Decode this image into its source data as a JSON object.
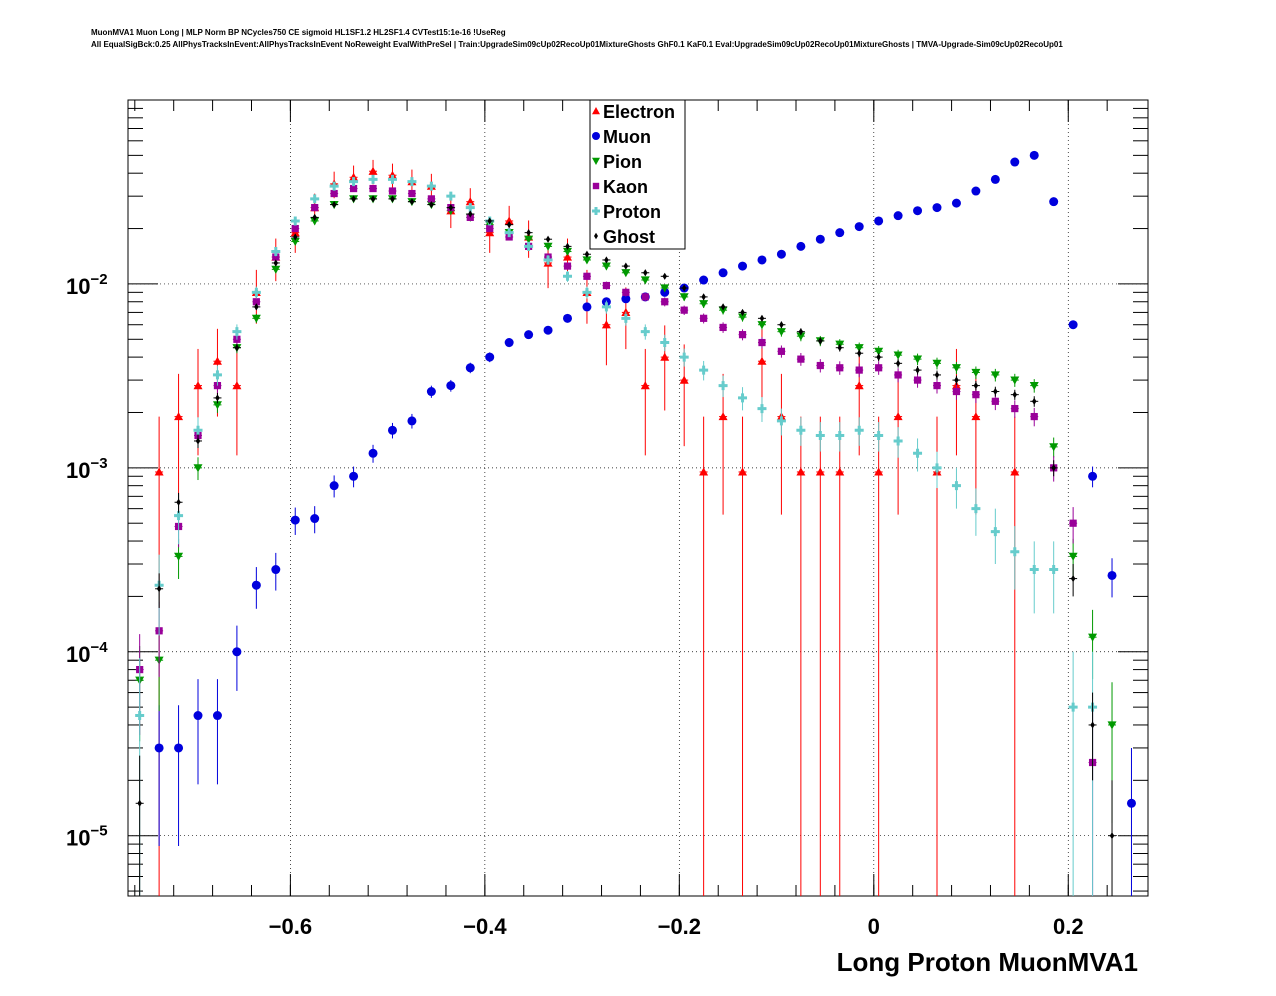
{
  "title_lines": [
    "MuonMVA1 Muon Long | MLP Norm BP NCycles750 CE sigmoid HL1SF1.2 HL2SF1.4 CVTest15:1e-16 !UseReg",
    "All EqualSigBck:0.25 AllPhysTracksInEvent:AllPhysTracksInEvent NoReweight EvalWithPreSel | Train:UpgradeSim09cUp02RecoUp01MixtureGhosts GhF0.1 KaF0.1 Eval:UpgradeSim09cUp02RecoUp01MixtureGhosts | TMVA-Upgrade-Sim09cUp02RecoUp01"
  ],
  "chart_data": {
    "type": "scatter",
    "xlabel": "Long Proton MuonMVA1",
    "ylabel": "",
    "xlim": [
      -0.767,
      0.282
    ],
    "ylim": [
      4.7e-06,
      0.1
    ],
    "yscale": "log",
    "grid": true,
    "legend_position": "top-center",
    "x_ticks": [
      "−0.6",
      "−0.4",
      "−0.2",
      "0",
      "0.2"
    ],
    "x_tick_values": [
      -0.6,
      -0.4,
      -0.2,
      0,
      0.2
    ],
    "y_ticks": [
      {
        "base": "10",
        "exp": "−2",
        "value": 0.01
      },
      {
        "base": "10",
        "exp": "−3",
        "value": 0.001
      },
      {
        "base": "10",
        "exp": "−4",
        "value": 0.0001
      },
      {
        "base": "10",
        "exp": "−5",
        "value": 1e-05
      }
    ],
    "x": [
      -0.755,
      -0.735,
      -0.715,
      -0.695,
      -0.675,
      -0.655,
      -0.635,
      -0.615,
      -0.595,
      -0.575,
      -0.555,
      -0.535,
      -0.515,
      -0.495,
      -0.475,
      -0.455,
      -0.435,
      -0.415,
      -0.395,
      -0.375,
      -0.355,
      -0.335,
      -0.315,
      -0.295,
      -0.275,
      -0.255,
      -0.235,
      -0.215,
      -0.195,
      -0.175,
      -0.155,
      -0.135,
      -0.115,
      -0.095,
      -0.075,
      -0.055,
      -0.035,
      -0.015,
      0.005,
      0.025,
      0.045,
      0.065,
      0.085,
      0.105,
      0.125,
      0.145,
      0.165,
      0.185,
      0.205,
      0.225,
      0.245,
      0.265
    ],
    "series": [
      {
        "name": "Electron",
        "color": "#ff0000",
        "marker": "triangle-up",
        "unit_weight": 0.00095,
        "values": [
          null,
          0.00095,
          0.0019,
          0.0028,
          0.0038,
          0.0028,
          0.009,
          0.014,
          0.019,
          0.026,
          0.035,
          0.038,
          0.041,
          0.039,
          0.036,
          0.034,
          0.025,
          0.028,
          0.019,
          0.022,
          0.018,
          0.013,
          0.014,
          0.009,
          0.006,
          0.007,
          0.0028,
          0.004,
          0.003,
          0.00095,
          0.0019,
          0.00095,
          0.0038,
          0.0019,
          0.00095,
          0.00095,
          0.00095,
          0.0028,
          0.00095,
          0.0019,
          null,
          0.00095,
          0.0028,
          0.0019,
          null,
          0.00095,
          null,
          null,
          null,
          null,
          null,
          null
        ]
      },
      {
        "name": "Muon",
        "color": "#0000dd",
        "marker": "circle",
        "unit_weight": 1.5e-05,
        "values": [
          null,
          3e-05,
          3e-05,
          4.5e-05,
          4.5e-05,
          0.0001,
          0.00023,
          0.00028,
          0.00052,
          0.00053,
          0.0008,
          0.0009,
          0.0012,
          0.0016,
          0.0018,
          0.0026,
          0.0028,
          0.0035,
          0.004,
          0.0048,
          0.0053,
          0.0056,
          0.0065,
          0.0075,
          0.008,
          0.0083,
          0.0085,
          0.009,
          0.0095,
          0.0105,
          0.0115,
          0.0125,
          0.0135,
          0.0145,
          0.016,
          0.0175,
          0.019,
          0.0205,
          0.022,
          0.0235,
          0.025,
          0.026,
          0.0275,
          0.032,
          0.037,
          0.046,
          0.05,
          0.028,
          0.006,
          0.0009,
          0.00026,
          1.5e-05
        ]
      },
      {
        "name": "Pion",
        "color": "#009900",
        "marker": "triangle-down",
        "unit_weight": 2e-05,
        "values": [
          7e-05,
          9e-05,
          0.00033,
          0.001,
          0.0022,
          0.0045,
          0.0065,
          0.012,
          0.017,
          0.022,
          0.027,
          0.029,
          0.029,
          0.029,
          0.028,
          0.027,
          0.025,
          0.023,
          0.021,
          0.019,
          0.0175,
          0.016,
          0.015,
          0.0135,
          0.0125,
          0.0115,
          0.0105,
          0.0095,
          0.0085,
          0.0078,
          0.0072,
          0.0066,
          0.006,
          0.0055,
          0.0052,
          0.0049,
          0.0047,
          0.0045,
          0.0043,
          0.0041,
          0.0039,
          0.0037,
          0.0035,
          0.0033,
          0.0032,
          0.003,
          0.0028,
          0.0013,
          0.00033,
          0.00012,
          4e-05,
          null
        ]
      },
      {
        "name": "Kaon",
        "color": "#990099",
        "marker": "square",
        "unit_weight": 2.5e-05,
        "values": [
          8e-05,
          0.00013,
          0.00048,
          0.0015,
          0.0028,
          0.005,
          0.008,
          0.014,
          0.02,
          0.026,
          0.031,
          0.033,
          0.033,
          0.032,
          0.031,
          0.029,
          0.026,
          0.023,
          0.02,
          0.018,
          0.016,
          0.014,
          0.0125,
          0.011,
          0.0098,
          0.009,
          0.0085,
          0.008,
          0.0072,
          0.0065,
          0.0058,
          0.0053,
          0.0048,
          0.0043,
          0.0039,
          0.0036,
          0.0035,
          0.0034,
          0.0035,
          0.0032,
          0.003,
          0.0028,
          0.0026,
          0.0025,
          0.0023,
          0.0021,
          0.0019,
          0.001,
          0.0005,
          2.5e-05,
          null,
          null
        ]
      },
      {
        "name": "Proton",
        "color": "#66cccc",
        "marker": "plus",
        "unit_weight": 5e-05,
        "values": [
          4.5e-05,
          0.00023,
          0.00055,
          0.0016,
          0.0032,
          0.0055,
          0.009,
          0.015,
          0.022,
          0.029,
          0.034,
          0.036,
          0.037,
          0.037,
          0.036,
          0.034,
          0.03,
          0.026,
          0.022,
          0.019,
          0.016,
          0.0135,
          0.011,
          0.009,
          0.0075,
          0.0065,
          0.0055,
          0.0048,
          0.004,
          0.0034,
          0.0028,
          0.0024,
          0.0021,
          0.0018,
          0.0016,
          0.0015,
          0.0015,
          0.0016,
          0.0015,
          0.0014,
          0.0012,
          0.001,
          0.0008,
          0.0006,
          0.00045,
          0.00035,
          0.00028,
          0.00028,
          5e-05,
          5e-05,
          null,
          null
        ]
      },
      {
        "name": "Ghost",
        "color": "#000000",
        "marker": "diamond",
        "unit_weight": 1e-05,
        "values": [
          1.5e-05,
          0.00022,
          0.00065,
          0.0014,
          0.0024,
          0.0045,
          0.0075,
          0.013,
          0.018,
          0.023,
          0.027,
          0.029,
          0.029,
          0.029,
          0.028,
          0.027,
          0.026,
          0.024,
          0.022,
          0.021,
          0.019,
          0.0175,
          0.016,
          0.0145,
          0.0135,
          0.0125,
          0.0115,
          0.011,
          0.0095,
          0.0085,
          0.0075,
          0.007,
          0.0065,
          0.006,
          0.0055,
          0.0049,
          0.0045,
          0.0042,
          0.004,
          0.0037,
          0.0034,
          0.0032,
          0.003,
          0.0028,
          0.0026,
          0.0025,
          0.0023,
          0.001,
          0.00025,
          4e-05,
          1e-05,
          null
        ]
      }
    ]
  }
}
